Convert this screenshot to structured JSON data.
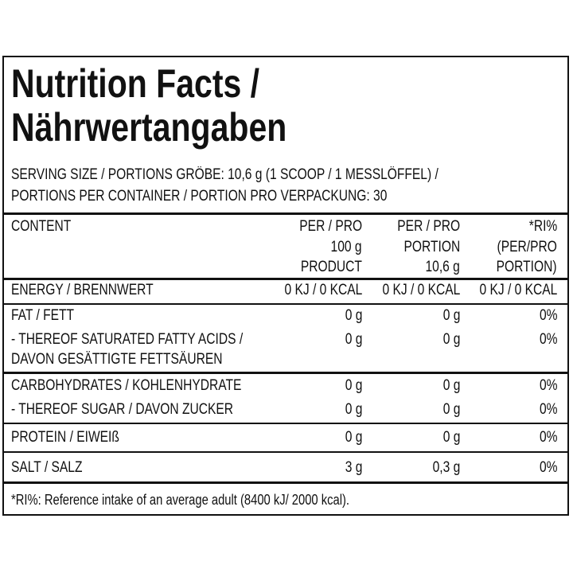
{
  "title": [
    "Nutrition Facts /",
    "Nährwertangaben"
  ],
  "serving": [
    "SERVING SIZE / PORTIONS GRÖBE: 10,6 g (1 SCOOP / 1 MESSLÖFFEL) /",
    "PORTIONS PER CONTAINER / PORTION PRO VERPACKUNG: 30"
  ],
  "table": {
    "header": [
      [
        "CONTENT"
      ],
      [
        "PER / PRO",
        "100 g",
        "PRODUCT"
      ],
      [
        "PER / PRO",
        "PORTION",
        "10,6 g"
      ],
      [
        "*RI%",
        "(PER/PRO",
        "PORTION)"
      ]
    ],
    "rows": [
      {
        "label": [
          "ENERGY / BRENNWERT"
        ],
        "values": [
          "0 KJ / 0 KCAL",
          "0 KJ / 0 KCAL",
          "0 KJ / 0 KCAL"
        ]
      },
      {
        "label": [
          "FAT / FETT"
        ],
        "values": [
          "0 g",
          "0 g",
          "0%"
        ]
      },
      {
        "label": [
          "- THEREOF SATURATED FATTY ACIDS /",
          "DAVON GESÄTTIGTE FETTSÄUREN"
        ],
        "values": [
          "0 g",
          "0 g",
          "0%"
        ]
      },
      {
        "label": [
          "CARBOHYDRATES / KOHLENHYDRATE"
        ],
        "values": [
          "0 g",
          "0 g",
          "0%"
        ]
      },
      {
        "label": [
          "- THEREOF SUGAR / DAVON ZUCKER"
        ],
        "values": [
          "0 g",
          "0 g",
          "0%"
        ]
      },
      {
        "label": [
          "PROTEIN / EIWEIß"
        ],
        "values": [
          "0 g",
          "0 g",
          "0%"
        ]
      },
      {
        "label": [
          "SALT / SALZ"
        ],
        "values": [
          "3 g",
          "0,3 g",
          "0%"
        ]
      }
    ]
  },
  "footnote": "*RI%: Reference intake of an average adult (8400 kJ/ 2000 kcal)."
}
